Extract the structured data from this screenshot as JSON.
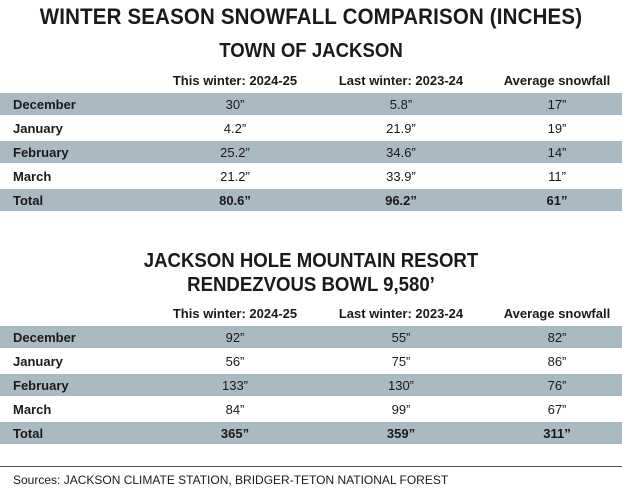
{
  "title": "WINTER SEASON SNOWFALL COMPARISON (INCHES)",
  "columns": [
    "This winter: 2024-25",
    "Last winter: 2023-24",
    "Average snowfall"
  ],
  "chart_data": [
    {
      "type": "table",
      "title": "TOWN OF JACKSON",
      "columns": [
        "This winter: 2024-25",
        "Last winter: 2023-24",
        "Average snowfall"
      ],
      "rows": [
        {
          "label": "December",
          "values": [
            "30”",
            "5.8”",
            "17”"
          ]
        },
        {
          "label": "January",
          "values": [
            "4.2”",
            "21.9”",
            "19”"
          ]
        },
        {
          "label": "February",
          "values": [
            "25.2”",
            "34.6”",
            "14”"
          ]
        },
        {
          "label": "March",
          "values": [
            "21.2”",
            "33.9”",
            "11”"
          ]
        },
        {
          "label": "Total",
          "values": [
            "80.6”",
            "96.2”",
            "61”"
          ]
        }
      ]
    },
    {
      "type": "table",
      "title": "JACKSON HOLE MOUNTAIN RESORT",
      "subtitle": "RENDEZVOUS BOWL 9,580’",
      "columns": [
        "This winter: 2024-25",
        "Last winter: 2023-24",
        "Average snowfall"
      ],
      "rows": [
        {
          "label": "December",
          "values": [
            "92”",
            "55”",
            "82”"
          ]
        },
        {
          "label": "January",
          "values": [
            "56”",
            "75”",
            "86”"
          ]
        },
        {
          "label": "February",
          "values": [
            "133”",
            "130”",
            "76”"
          ]
        },
        {
          "label": "March",
          "values": [
            "84”",
            "99”",
            "67”"
          ]
        },
        {
          "label": "Total",
          "values": [
            "365”",
            "359”",
            "311”"
          ]
        }
      ]
    }
  ],
  "source": "Sources: JACKSON CLIMATE STATION, BRIDGER-TETON NATIONAL FOREST"
}
